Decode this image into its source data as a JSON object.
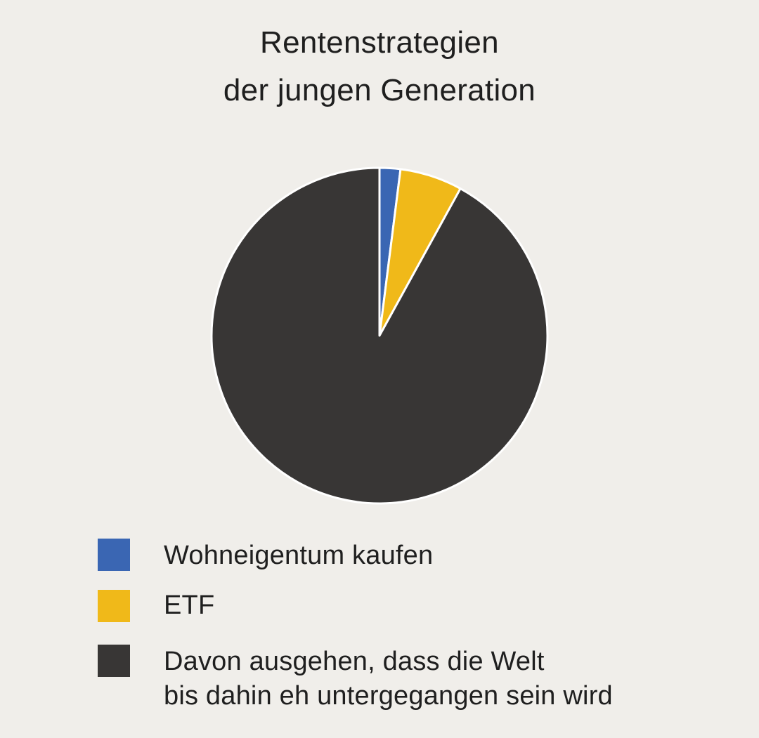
{
  "title": {
    "line1": "Rentenstrategien",
    "line2": "der jungen Generation"
  },
  "chart_data": {
    "type": "pie",
    "title": "Rentenstrategien der jungen Generation",
    "start_angle_deg": 0,
    "direction": "clockwise",
    "legend_placement": "bottom",
    "slice_border_color": "#ffffff",
    "slices": [
      {
        "label_lines": [
          "Wohneigentum kaufen"
        ],
        "value": 2,
        "color": "#3a66b3"
      },
      {
        "label_lines": [
          "ETF"
        ],
        "value": 6,
        "color": "#f0b919"
      },
      {
        "label_lines": [
          "Davon ausgehen, dass die Welt",
          "bis dahin eh untergegangen sein wird"
        ],
        "value": 92,
        "color": "#383635"
      }
    ]
  }
}
